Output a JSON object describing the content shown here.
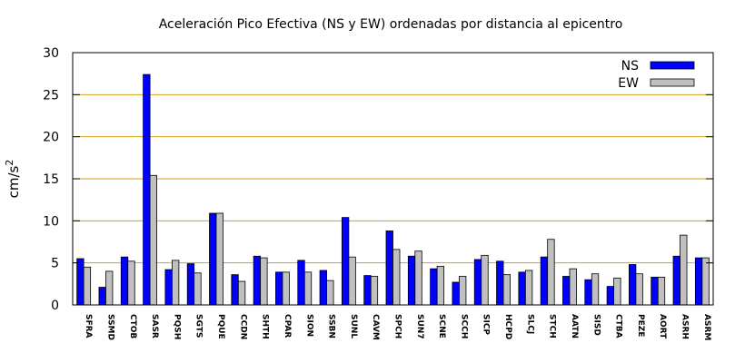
{
  "chart_data": {
    "type": "bar",
    "title": "Aceleración Pico Efectiva (NS y EW) ordenadas por distancia al epicentro",
    "xlabel": "",
    "ylabel": "cm/s",
    "ylabel_superscript": "2",
    "ylim": [
      0,
      30
    ],
    "yticks": [
      0,
      5,
      10,
      15,
      20,
      25,
      30
    ],
    "grid": true,
    "legend_position": "top-right",
    "categories": [
      "SFRA",
      "SSMD",
      "CTOB",
      "SASR",
      "PQSH",
      "SGTS",
      "PQUE",
      "CCDN",
      "SHTH",
      "CPAR",
      "SION",
      "SSBN",
      "SUNL",
      "CAVM",
      "SPCH",
      "SUN7",
      "SCNE",
      "SCCH",
      "SICP",
      "HCPD",
      "SLCJ",
      "STCH",
      "AATN",
      "SISD",
      "CTBA",
      "PEZE",
      "AORT",
      "ASRH",
      "ASRM"
    ],
    "series": [
      {
        "name": "NS",
        "color": "#0000ff",
        "values": [
          5.5,
          2.1,
          5.7,
          27.4,
          4.2,
          4.9,
          10.9,
          3.6,
          5.8,
          3.9,
          5.3,
          4.1,
          10.4,
          3.5,
          8.8,
          5.8,
          4.3,
          2.7,
          5.4,
          5.2,
          3.9,
          5.7,
          3.4,
          3.0,
          2.2,
          4.8,
          3.3,
          5.8,
          5.6
        ]
      },
      {
        "name": "EW",
        "color": "#c0c0c0",
        "values": [
          4.5,
          4.0,
          5.2,
          15.4,
          5.3,
          3.8,
          10.9,
          2.8,
          5.6,
          3.9,
          3.9,
          2.9,
          5.7,
          3.4,
          6.6,
          6.4,
          4.6,
          3.4,
          5.9,
          3.6,
          4.1,
          7.8,
          4.3,
          3.7,
          3.2,
          3.7,
          3.3,
          8.3,
          5.6
        ]
      }
    ]
  }
}
